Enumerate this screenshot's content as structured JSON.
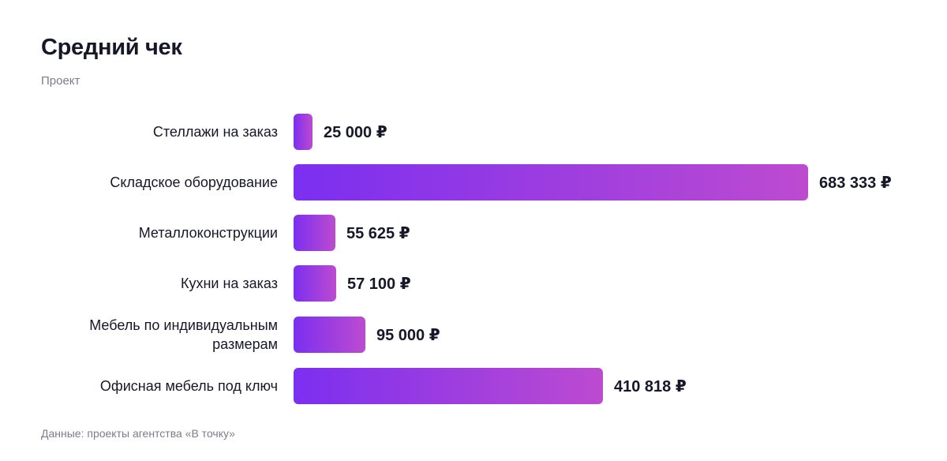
{
  "header": {
    "title": "Средний чек",
    "subtitle": "Проект"
  },
  "footnote": "Данные: проекты агентства «В точку»",
  "colors": {
    "bar_gradient_start": "#7b2ff0",
    "bar_gradient_end": "#bd4bd0",
    "text": "#17172a",
    "muted_text": "#7b7c8a"
  },
  "chart_data": {
    "type": "bar",
    "orientation": "horizontal",
    "title": "Средний чек",
    "subtitle": "Проект",
    "categories": [
      "Стеллажи на заказ",
      "Складское оборудование",
      "Металлоконструкции",
      "Кухни на заказ",
      "Мебель по индивидуальным размерам",
      "Офисная мебель под ключ"
    ],
    "values": [
      25000,
      683333,
      55625,
      57100,
      95000,
      410818
    ],
    "value_labels": [
      "25 000 ₽",
      "683 333 ₽",
      "55 625 ₽",
      "57 100 ₽",
      "95 000 ₽",
      "410 818 ₽"
    ],
    "unit": "₽",
    "xlim": [
      0,
      683333
    ],
    "grid": false,
    "legend": "none"
  }
}
